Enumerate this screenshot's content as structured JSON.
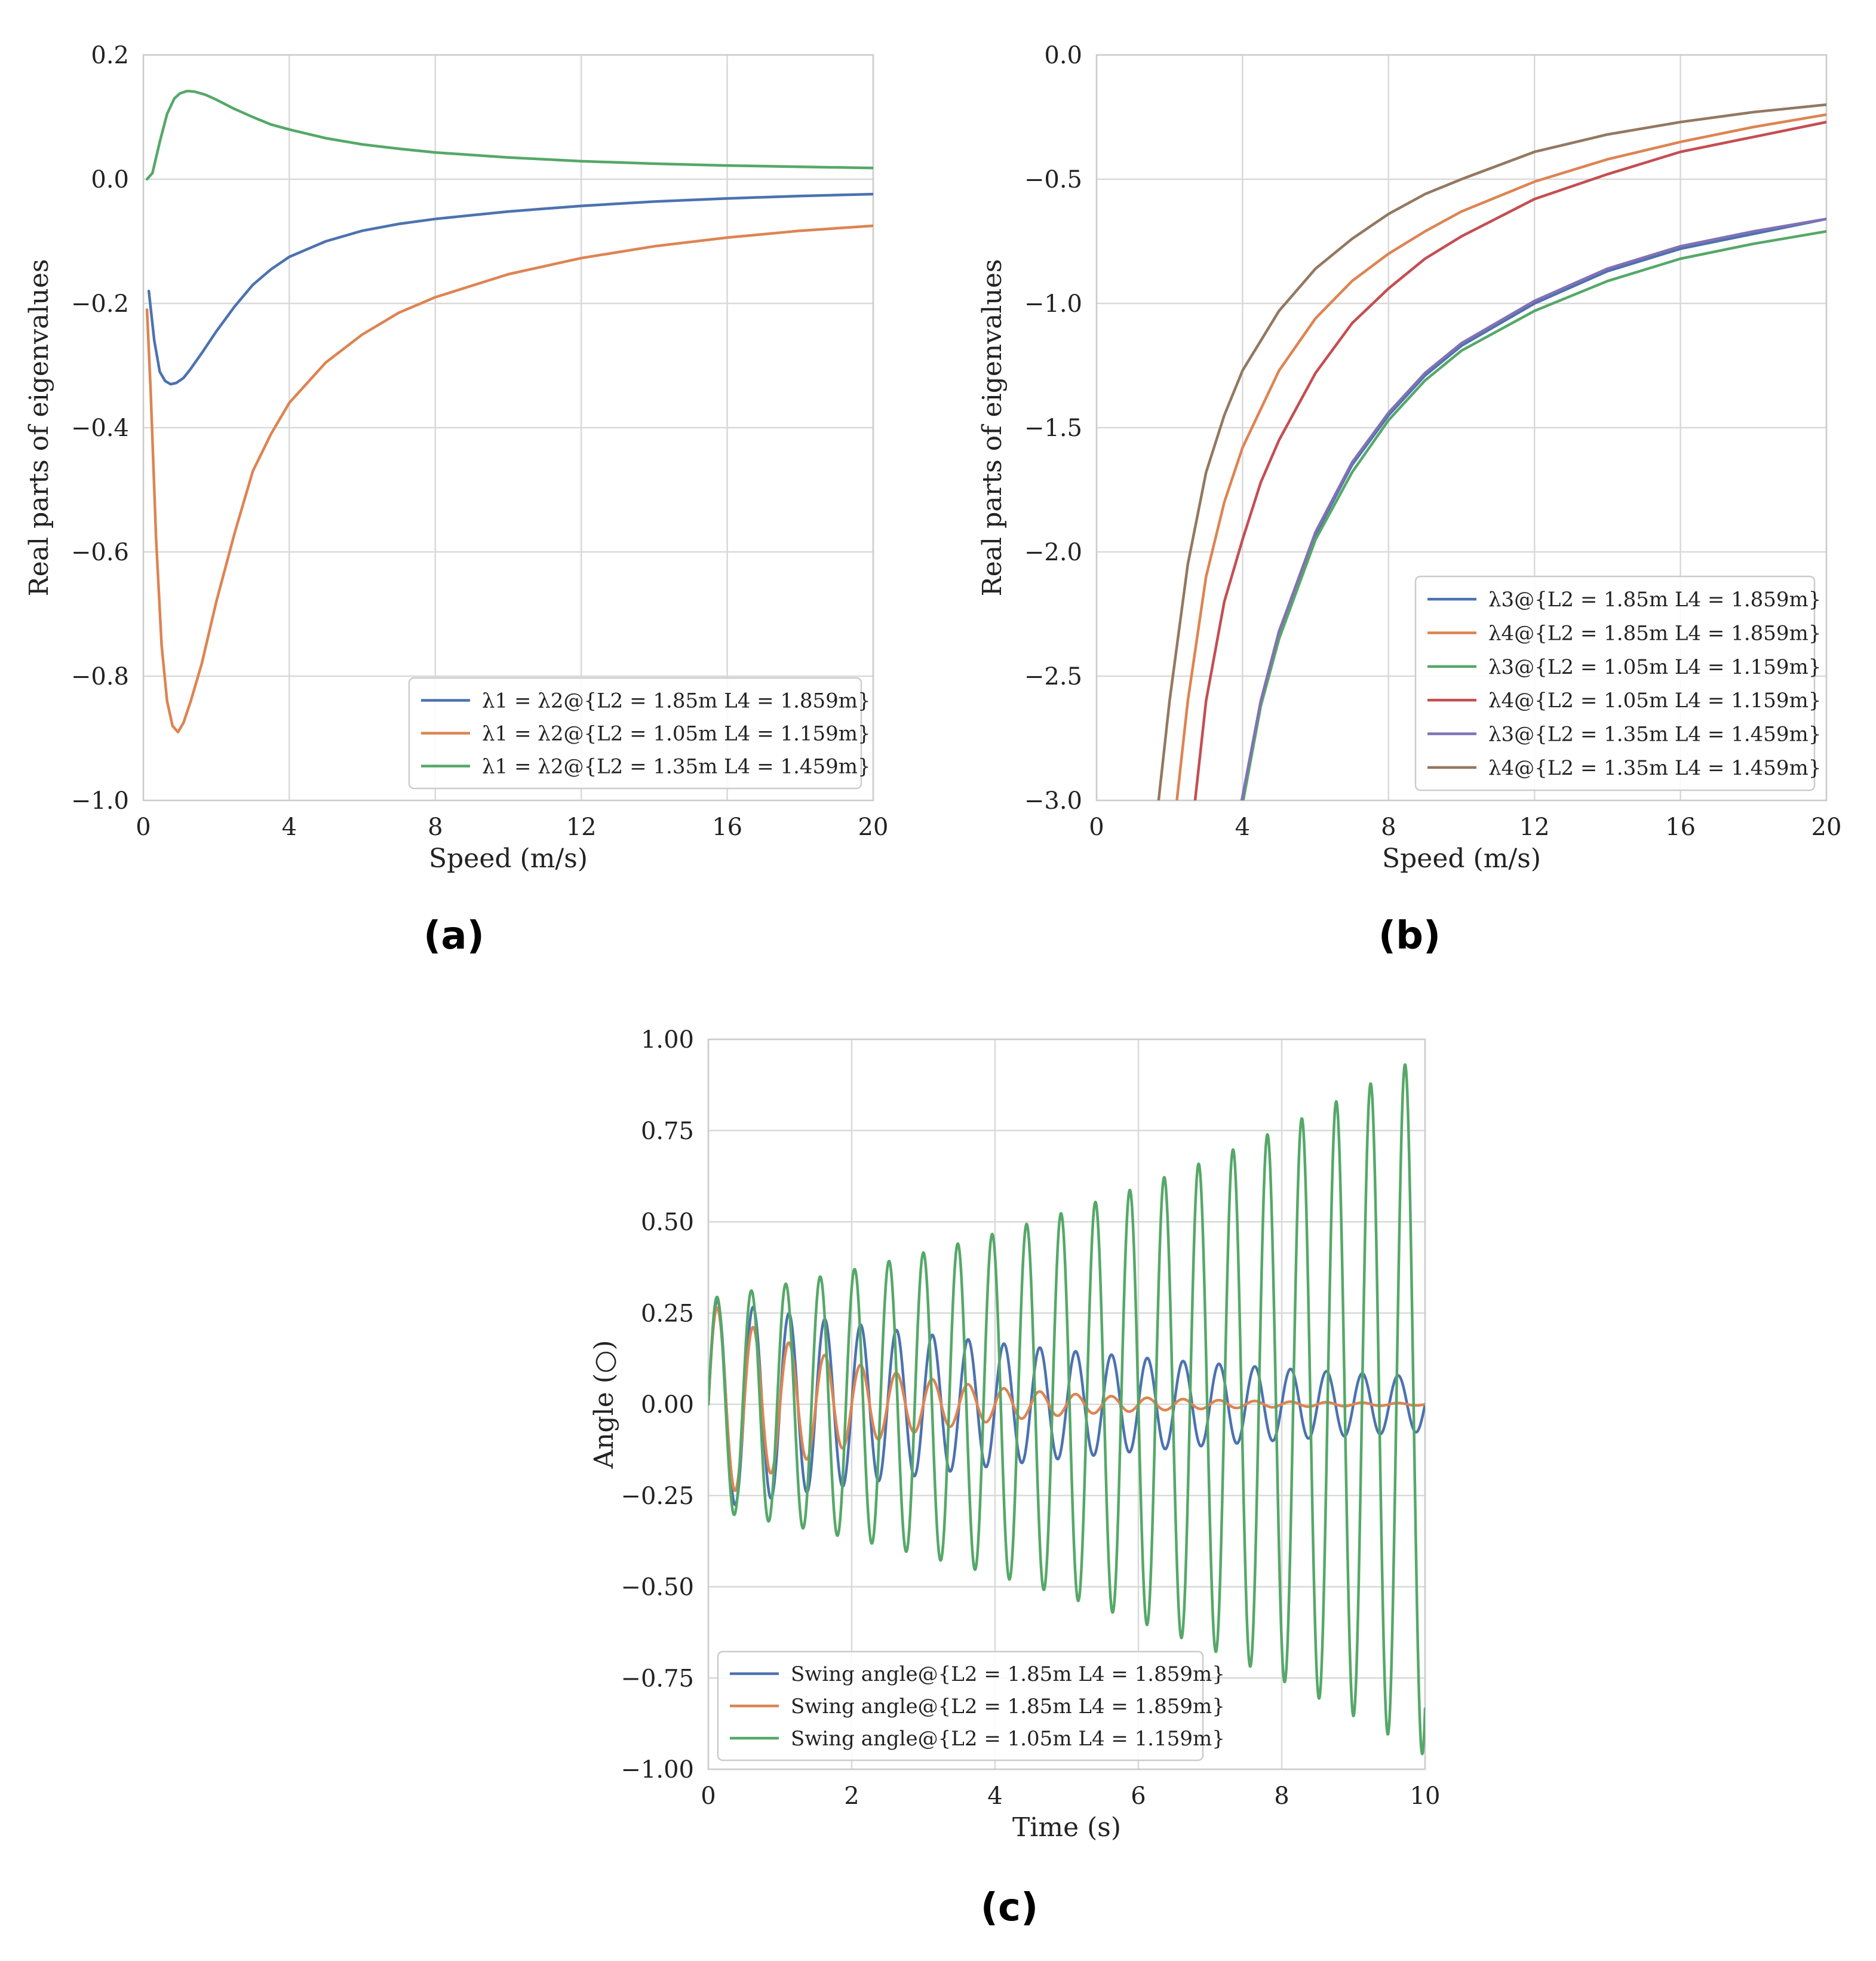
{
  "figure": {
    "panel_labels": [
      "(a)",
      "(b)",
      "(c)"
    ]
  },
  "chart_data": [
    {
      "id": "a",
      "type": "line",
      "panel_label": "(a)",
      "xlabel": "Speed (m/s)",
      "ylabel": "Real parts of eigenvalues",
      "xlim": [
        0,
        20
      ],
      "ylim": [
        -1.0,
        0.2
      ],
      "xticks": [
        0,
        4,
        8,
        12,
        16,
        20
      ],
      "xtick_labels": [
        "0",
        "4",
        "8",
        "12",
        "16",
        "20"
      ],
      "yticks": [
        -1.0,
        -0.8,
        -0.6,
        -0.4,
        -0.2,
        0.0,
        0.2
      ],
      "ytick_labels": [
        "−1.0",
        "−0.8",
        "−0.6",
        "−0.4",
        "−0.2",
        "0.0",
        "0.2"
      ],
      "grid": true,
      "legend_position": "lower-right",
      "series": [
        {
          "name": "λ1 = λ2@{L2 = 1.85m    L4 = 1.859m}",
          "color": "#4c72b0",
          "x": [
            0.15,
            0.3,
            0.45,
            0.6,
            0.75,
            0.9,
            1.1,
            1.3,
            1.6,
            2.0,
            2.5,
            3.0,
            3.5,
            4.0,
            5.0,
            6.0,
            7.0,
            8.0,
            10.0,
            12.0,
            14.0,
            16.0,
            18.0,
            20.0
          ],
          "y": [
            -0.18,
            -0.26,
            -0.31,
            -0.325,
            -0.33,
            -0.328,
            -0.32,
            -0.305,
            -0.28,
            -0.245,
            -0.205,
            -0.17,
            -0.145,
            -0.125,
            -0.1,
            -0.083,
            -0.072,
            -0.064,
            -0.052,
            -0.043,
            -0.036,
            -0.031,
            -0.027,
            -0.024
          ]
        },
        {
          "name": "λ1 = λ2@{L2 = 1.05m    L4 = 1.159m}",
          "color": "#dd8452",
          "x": [
            0.1,
            0.2,
            0.35,
            0.5,
            0.65,
            0.8,
            0.95,
            1.1,
            1.3,
            1.6,
            2.0,
            2.5,
            3.0,
            3.5,
            4.0,
            5.0,
            6.0,
            7.0,
            8.0,
            10.0,
            12.0,
            14.0,
            16.0,
            18.0,
            20.0
          ],
          "y": [
            -0.21,
            -0.34,
            -0.58,
            -0.75,
            -0.84,
            -0.88,
            -0.89,
            -0.875,
            -0.84,
            -0.78,
            -0.68,
            -0.57,
            -0.47,
            -0.41,
            -0.36,
            -0.295,
            -0.25,
            -0.215,
            -0.19,
            -0.153,
            -0.127,
            -0.108,
            -0.094,
            -0.083,
            -0.075
          ]
        },
        {
          "name": "λ1 = λ2@{L2 = 1.35m    L4 = 1.459m}",
          "color": "#55a868",
          "x": [
            0.1,
            0.25,
            0.45,
            0.65,
            0.85,
            1.0,
            1.2,
            1.4,
            1.7,
            2.0,
            2.5,
            3.0,
            3.5,
            4.0,
            5.0,
            6.0,
            7.0,
            8.0,
            10.0,
            12.0,
            14.0,
            16.0,
            18.0,
            20.0
          ],
          "y": [
            0.0,
            0.01,
            0.06,
            0.105,
            0.13,
            0.138,
            0.142,
            0.141,
            0.136,
            0.128,
            0.113,
            0.1,
            0.088,
            0.08,
            0.066,
            0.056,
            0.049,
            0.043,
            0.035,
            0.029,
            0.025,
            0.022,
            0.02,
            0.018
          ]
        }
      ]
    },
    {
      "id": "b",
      "type": "line",
      "panel_label": "(b)",
      "xlabel": "Speed (m/s)",
      "ylabel": "Real parts of eigenvalues",
      "xlim": [
        0,
        20
      ],
      "ylim": [
        -3.0,
        0.0
      ],
      "xticks": [
        0,
        4,
        8,
        12,
        16,
        20
      ],
      "xtick_labels": [
        "0",
        "4",
        "8",
        "12",
        "16",
        "20"
      ],
      "yticks": [
        -3.0,
        -2.5,
        -2.0,
        -1.5,
        -1.0,
        -0.5,
        0.0
      ],
      "ytick_labels": [
        "−3.0",
        "−2.5",
        "−2.0",
        "−1.5",
        "−1.0",
        "−0.5",
        "0.0"
      ],
      "grid": true,
      "legend_position": "lower-right",
      "series": [
        {
          "name": "λ3@{L2 = 1.85m    L4 = 1.859m}",
          "color": "#4c72b0",
          "x": [
            3.98,
            4.5,
            5.0,
            6.0,
            7.0,
            8.0,
            9.0,
            10.0,
            12.0,
            14.0,
            16.0,
            18.0,
            20.0
          ],
          "y": [
            -3.0,
            -2.6,
            -2.32,
            -1.93,
            -1.65,
            -1.45,
            -1.29,
            -1.17,
            -1.0,
            -0.87,
            -0.78,
            -0.72,
            -0.66
          ]
        },
        {
          "name": "λ4@{L2 = 1.85m    L4 = 1.859m}",
          "color": "#dd8452",
          "x": [
            2.2,
            2.5,
            3.0,
            3.5,
            4.0,
            5.0,
            6.0,
            7.0,
            8.0,
            9.0,
            10.0,
            12.0,
            14.0,
            16.0,
            18.0,
            20.0
          ],
          "y": [
            -3.0,
            -2.6,
            -2.1,
            -1.8,
            -1.58,
            -1.27,
            -1.06,
            -0.91,
            -0.8,
            -0.71,
            -0.63,
            -0.51,
            -0.42,
            -0.35,
            -0.29,
            -0.24
          ]
        },
        {
          "name": "λ3@{L2 = 1.05m    L4 = 1.159m}",
          "color": "#55a868",
          "x": [
            4.02,
            4.5,
            5.0,
            6.0,
            7.0,
            8.0,
            9.0,
            10.0,
            12.0,
            14.0,
            16.0,
            18.0,
            20.0
          ],
          "y": [
            -3.0,
            -2.62,
            -2.35,
            -1.95,
            -1.68,
            -1.47,
            -1.31,
            -1.19,
            -1.03,
            -0.91,
            -0.82,
            -0.76,
            -0.71
          ]
        },
        {
          "name": "λ4@{L2 = 1.05m    L4 = 1.159m}",
          "color": "#c44e52",
          "x": [
            2.7,
            3.0,
            3.5,
            4.0,
            4.5,
            5.0,
            6.0,
            7.0,
            8.0,
            9.0,
            10.0,
            12.0,
            14.0,
            16.0,
            18.0,
            20.0
          ],
          "y": [
            -3.0,
            -2.6,
            -2.2,
            -1.95,
            -1.72,
            -1.55,
            -1.28,
            -1.08,
            -0.94,
            -0.82,
            -0.73,
            -0.58,
            -0.48,
            -0.39,
            -0.33,
            -0.27
          ]
        },
        {
          "name": "λ3@{L2 = 1.35m    L4 = 1.459m}",
          "color": "#8172b3",
          "x": [
            3.98,
            4.5,
            5.0,
            6.0,
            7.0,
            8.0,
            9.0,
            10.0,
            12.0,
            14.0,
            16.0,
            18.0,
            20.0
          ],
          "y": [
            -3.0,
            -2.6,
            -2.32,
            -1.92,
            -1.64,
            -1.44,
            -1.28,
            -1.16,
            -0.99,
            -0.86,
            -0.77,
            -0.71,
            -0.66
          ]
        },
        {
          "name": "λ4@{L2 = 1.35m    L4 = 1.459m}",
          "color": "#937860",
          "x": [
            1.7,
            2.0,
            2.5,
            3.0,
            3.5,
            4.0,
            5.0,
            6.0,
            7.0,
            8.0,
            9.0,
            10.0,
            12.0,
            14.0,
            16.0,
            18.0,
            20.0
          ],
          "y": [
            -3.0,
            -2.6,
            -2.05,
            -1.68,
            -1.45,
            -1.27,
            -1.03,
            -0.86,
            -0.74,
            -0.64,
            -0.56,
            -0.5,
            -0.39,
            -0.32,
            -0.27,
            -0.23,
            -0.2
          ]
        }
      ]
    },
    {
      "id": "c",
      "type": "line",
      "panel_label": "(c)",
      "xlabel": "Time (s)",
      "ylabel": "Angle (○)",
      "xlim": [
        0,
        10
      ],
      "ylim": [
        -1.0,
        1.0
      ],
      "xticks": [
        0,
        2,
        4,
        6,
        8,
        10
      ],
      "xtick_labels": [
        "0",
        "2",
        "4",
        "6",
        "8",
        "10"
      ],
      "yticks": [
        -1.0,
        -0.75,
        -0.5,
        -0.25,
        0.0,
        0.25,
        0.5,
        0.75,
        1.0
      ],
      "ytick_labels": [
        "−1.00",
        "−0.75",
        "−0.50",
        "−0.25",
        "0.00",
        "0.25",
        "0.50",
        "0.75",
        "1.00"
      ],
      "grid": true,
      "legend_position": "lower-left",
      "series": [
        {
          "name": "Swing angle@{L2 = 1.85m    L4 = 1.859m}",
          "color": "#4c72b0",
          "model": "damped_sine",
          "amplitude": 0.29,
          "decay": 0.135,
          "period": 0.5,
          "x_range": [
            0,
            10
          ]
        },
        {
          "name": "Swing angle@{L2 = 1.85m    L4 = 1.859m}",
          "color": "#dd8452",
          "model": "damped_sine",
          "amplitude": 0.28,
          "decay": 0.45,
          "period": 0.5,
          "x_range": [
            0,
            10
          ]
        },
        {
          "name": "Swing angle@{L2 = 1.05m    L4 = 1.159m}",
          "color": "#55a868",
          "model": "growing_sine",
          "amplitude": 0.29,
          "growth": 0.12,
          "period": 0.48,
          "x_range": [
            0,
            10
          ]
        }
      ]
    }
  ]
}
